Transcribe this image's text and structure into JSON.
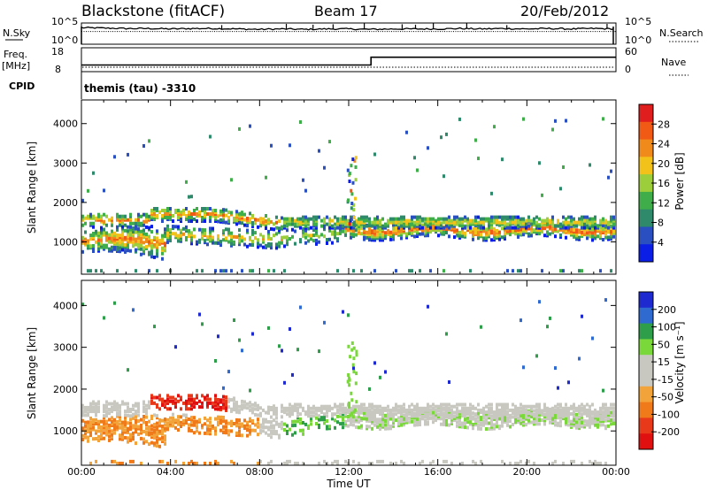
{
  "header": {
    "station": "Blackstone (fitACF)",
    "beam": "Beam 17",
    "date": "20/Feb/2012"
  },
  "colors": {
    "power_scale": [
      "#0a1ee6",
      "#2a4fc0",
      "#2e8a6a",
      "#3fae4a",
      "#9ccd3a",
      "#f2c21a",
      "#f08a1a",
      "#f05a14",
      "#e01e1e"
    ],
    "velocity_scale": [
      "#1e2ad0",
      "#2e6ad0",
      "#2e9e4a",
      "#7ad83a",
      "#c8c8c0",
      "#c8c8c0",
      "#f2a43a",
      "#f07a1a",
      "#e83a1a",
      "#e01010"
    ]
  },
  "chart_data": [
    {
      "type": "line",
      "name_panel": "noise",
      "left_label": "N.Sky",
      "right_label": "N.Search",
      "left_ticks": [
        "10^5",
        "10^0"
      ],
      "right_ticks": [
        "10^5",
        "10^0"
      ],
      "x": [
        0,
        1,
        2,
        3,
        4,
        5,
        6,
        7,
        8,
        9,
        10,
        11,
        12,
        13,
        14,
        15,
        16,
        17,
        18,
        19,
        20,
        21,
        22,
        23,
        24
      ],
      "series": [
        {
          "values_log10": [
            3.9,
            3.8,
            3.7,
            3.7,
            3.6,
            3.7,
            3.7,
            3.6,
            3.5,
            3.6,
            3.5,
            3.6,
            3.6,
            3.5,
            3.6,
            3.6,
            3.6,
            3.7,
            3.6,
            3.7,
            3.6,
            3.7,
            3.6,
            3.7,
            3.6
          ]
        }
      ]
    },
    {
      "type": "line",
      "name_panel": "frequency",
      "left_label": "Freq.",
      "left_unit": "[MHz]",
      "right_label": "Nave",
      "left_ticks": [
        "18",
        "8"
      ],
      "right_ticks": [
        "60",
        "0"
      ],
      "cpid_label": "CPID",
      "cpid_text": "themis (tau) -3310",
      "series": [
        {
          "x": [
            0,
            13,
            13,
            24
          ],
          "values": [
            10.5,
            10.5,
            14.5,
            14.5
          ]
        }
      ]
    },
    {
      "type": "heatmap",
      "name_panel": "power",
      "ylabel": "Slant Range [km]",
      "yticks": [
        1000,
        2000,
        3000,
        4000
      ],
      "ylim": [
        180,
        4600
      ],
      "xlim": [
        0,
        24
      ],
      "colorbar_label": "Power [dB]",
      "colorbar_ticks": [
        "4",
        "8",
        "12",
        "16",
        "20",
        "24",
        "28"
      ]
    },
    {
      "type": "heatmap",
      "name_panel": "velocity",
      "ylabel": "Slant Range [km]",
      "yticks": [
        1000,
        2000,
        3000,
        4000
      ],
      "ylim": [
        180,
        4600
      ],
      "xlim": [
        0,
        24
      ],
      "colorbar_label": "Velocity [m s⁻¹]",
      "colorbar_ticks": [
        "200",
        "100",
        "50",
        "15",
        "-15",
        "-50",
        "-100",
        "-200"
      ],
      "xlabel": "Time UT",
      "xticks": [
        "00:00",
        "04:00",
        "08:00",
        "12:00",
        "16:00",
        "20:00",
        "00:00"
      ]
    }
  ]
}
